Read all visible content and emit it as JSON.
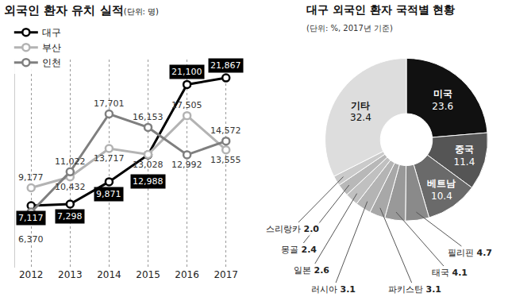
{
  "chart_data": [
    {
      "type": "line",
      "title": "외국인 환자 유치 실적",
      "subtitle": "(단위: 명)",
      "categories": [
        "2012",
        "2013",
        "2014",
        "2015",
        "2016",
        "2017"
      ],
      "series": [
        {
          "name": "대구",
          "color": "#000000",
          "values": [
            7117,
            7298,
            9871,
            12988,
            21100,
            21867
          ],
          "value_labels": [
            "7,117",
            "7,298",
            "9,871",
            "12,988",
            "21,100",
            "21,867"
          ]
        },
        {
          "name": "부산",
          "color": "#b3b3b3",
          "values": [
            9177,
            10432,
            13717,
            13028,
            17505,
            13555
          ],
          "value_labels": [
            "9,177",
            "10,432",
            "13,717",
            "13,028",
            "17,505",
            "13,555"
          ]
        },
        {
          "name": "인천",
          "color": "#7f7f7f",
          "values": [
            6370,
            11022,
            17701,
            16153,
            12992,
            14572
          ],
          "value_labels": [
            "6,370",
            "11,022",
            "17,701",
            "16,153",
            "12,992",
            "14,572"
          ]
        }
      ],
      "ylim": [
        0,
        24000
      ],
      "tick_labels": "x",
      "grid": true,
      "legend": "upper left",
      "marker": "circle",
      "data_labels": true
    },
    {
      "type": "pie",
      "title": "대구 외국인 환자 국적별 현황",
      "subtitle": "(단위: %, 2017년 기준)",
      "categories": [
        "미국",
        "중국",
        "베트남",
        "필리핀",
        "태국",
        "파키스탄",
        "러시아",
        "일본",
        "몽골",
        "스리랑카",
        "기타"
      ],
      "values": [
        23.6,
        11.4,
        10.4,
        4.7,
        4.1,
        3.1,
        3.1,
        2.6,
        2.4,
        2.0,
        32.4
      ],
      "value_labels": [
        "23.6",
        "11.4",
        "10.4",
        "4.7",
        "4.1",
        "3.1",
        "3.1",
        "2.6",
        "2.4",
        "2.0",
        "32.4"
      ],
      "colors": [
        "#111111",
        "#555555",
        "#6a6a6a",
        "#8a8a8a",
        "#999999",
        "#a8a8a8",
        "#b4b4b4",
        "#c0c0c0",
        "#b8b8b8",
        "#cacaca",
        "#dddddd"
      ],
      "data_labels": true
    }
  ]
}
